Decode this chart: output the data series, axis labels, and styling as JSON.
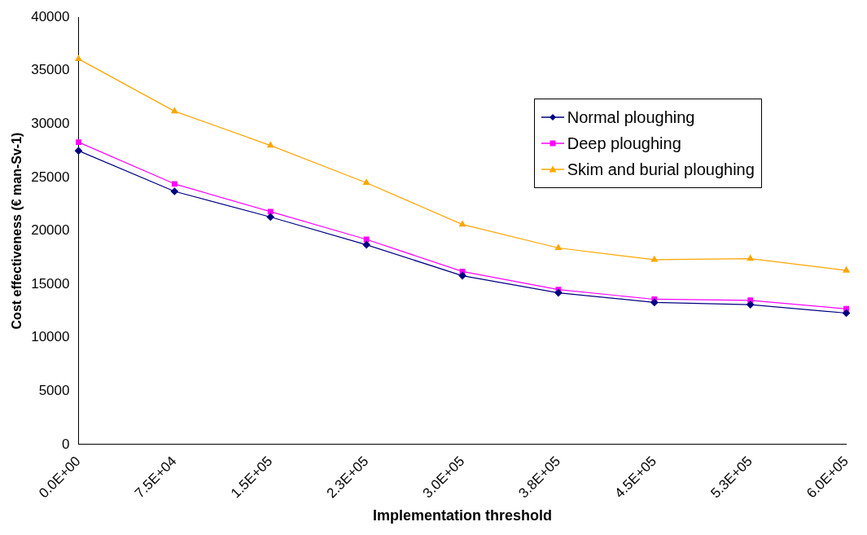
{
  "chart_data": {
    "type": "line",
    "xlabel": "Implementation threshold",
    "ylabel": "Cost effectiveness (€ man-Sv-1)",
    "categories": [
      "0.0E+00",
      "7.5E+04",
      "1.5E+05",
      "2.3E+05",
      "3.0E+05",
      "3.8E+05",
      "4.5E+05",
      "5.3E+05",
      "6.0E+05"
    ],
    "series": [
      {
        "name": "Normal ploughing",
        "color": "#000080",
        "marker": "diamond",
        "values": [
          27500,
          23700,
          21300,
          18700,
          15800,
          14200,
          13300,
          13100,
          12300
        ]
      },
      {
        "name": "Deep ploughing",
        "color": "#ff00ff",
        "marker": "square",
        "values": [
          28300,
          24400,
          21800,
          19200,
          16200,
          14500,
          13600,
          13500,
          12700
        ]
      },
      {
        "name": "Skim and burial ploughing",
        "color": "#ffa500",
        "marker": "triangle",
        "values": [
          36100,
          31200,
          28000,
          24500,
          20600,
          18400,
          17300,
          17400,
          16300
        ]
      }
    ],
    "ylim": [
      0,
      40000
    ],
    "yticks": [
      0,
      5000,
      10000,
      15000,
      20000,
      25000,
      30000,
      35000,
      40000
    ],
    "grid": false,
    "legend": "top right"
  }
}
